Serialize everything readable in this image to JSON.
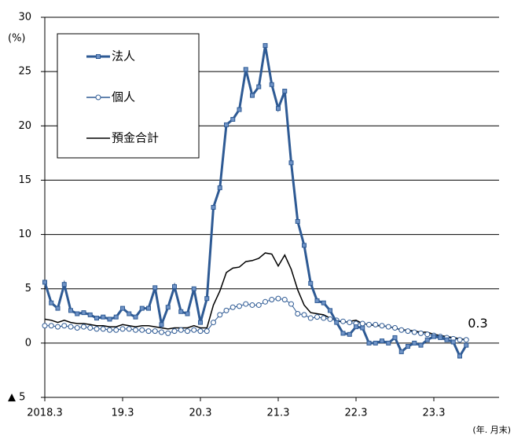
{
  "chart_data": {
    "type": "line",
    "y_unit": "(%)",
    "x_note": "(年. 月末)",
    "annotation": "0.3",
    "categories": [
      "2018.3",
      null,
      null,
      null,
      null,
      null,
      null,
      null,
      null,
      null,
      null,
      null,
      "19.3",
      null,
      null,
      null,
      null,
      null,
      null,
      null,
      null,
      null,
      null,
      null,
      "20.3",
      null,
      null,
      null,
      null,
      null,
      null,
      null,
      null,
      null,
      null,
      null,
      "21.3",
      null,
      null,
      null,
      null,
      null,
      null,
      null,
      null,
      null,
      null,
      null,
      "22.3",
      null,
      null,
      null,
      null,
      null,
      null,
      null,
      null,
      null,
      null,
      null,
      "23.3",
      null,
      null,
      null,
      null,
      null
    ],
    "series": [
      {
        "name": "法人",
        "color": "#2e5a94",
        "marker": "square",
        "values": [
          5.6,
          3.7,
          3.2,
          5.4,
          3.0,
          2.7,
          2.8,
          2.6,
          2.3,
          2.4,
          2.2,
          2.4,
          3.2,
          2.7,
          2.4,
          3.2,
          3.2,
          5.1,
          1.7,
          3.3,
          5.2,
          2.9,
          2.7,
          5.0,
          1.9,
          4.1,
          12.5,
          14.3,
          20.1,
          20.6,
          21.5,
          25.2,
          22.8,
          23.6,
          27.4,
          23.8,
          21.6,
          23.2,
          16.6,
          11.2,
          9.0,
          5.5,
          3.9,
          3.7,
          3.0,
          1.9,
          0.9,
          0.8,
          1.5,
          1.4,
          0.0,
          0.0,
          0.2,
          0.0,
          0.5,
          -0.8,
          -0.3,
          0.0,
          -0.2,
          0.3,
          0.6,
          0.5,
          0.3,
          0.1,
          -1.2,
          -0.2
        ]
      },
      {
        "name": "個人",
        "color": "#2e5a94",
        "marker": "circle",
        "values": [
          1.6,
          1.6,
          1.5,
          1.6,
          1.5,
          1.4,
          1.5,
          1.4,
          1.3,
          1.3,
          1.2,
          1.2,
          1.3,
          1.3,
          1.2,
          1.2,
          1.1,
          1.1,
          1.0,
          0.9,
          1.1,
          1.2,
          1.1,
          1.2,
          1.1,
          1.1,
          1.9,
          2.6,
          3.0,
          3.3,
          3.4,
          3.6,
          3.5,
          3.5,
          3.8,
          4.0,
          4.1,
          4.0,
          3.6,
          2.7,
          2.6,
          2.3,
          2.4,
          2.3,
          2.2,
          2.1,
          2.0,
          1.9,
          1.8,
          1.8,
          1.7,
          1.7,
          1.6,
          1.5,
          1.4,
          1.2,
          1.1,
          1.0,
          0.9,
          0.8,
          0.7,
          0.6,
          0.5,
          0.4,
          0.3,
          0.3
        ]
      },
      {
        "name": "預金合計",
        "color": "#000000",
        "marker": "none",
        "values": [
          2.2,
          2.1,
          1.9,
          2.1,
          1.9,
          1.8,
          1.8,
          1.7,
          1.6,
          1.6,
          1.5,
          1.5,
          1.7,
          1.6,
          1.5,
          1.6,
          1.6,
          1.5,
          1.4,
          1.3,
          1.4,
          1.4,
          1.4,
          1.6,
          1.4,
          1.4,
          3.5,
          4.8,
          6.5,
          6.9,
          7.0,
          7.5,
          7.6,
          7.8,
          8.3,
          8.2,
          7.1,
          8.1,
          6.8,
          4.9,
          3.5,
          2.8,
          2.7,
          2.6,
          2.3,
          2.1,
          1.9,
          2.0,
          2.1,
          1.8,
          1.7,
          1.6,
          1.6,
          1.5,
          1.4,
          1.2,
          1.2,
          1.1,
          1.0,
          1.0,
          0.8,
          0.7,
          0.6,
          0.5,
          0.4,
          0.3
        ]
      }
    ],
    "ylim": [
      -5,
      30
    ],
    "yticks": [
      {
        "value": -5,
        "label": "▲ 5"
      },
      0,
      5,
      10,
      15,
      20,
      25,
      30
    ],
    "grid": true,
    "legend": "upper-left"
  }
}
